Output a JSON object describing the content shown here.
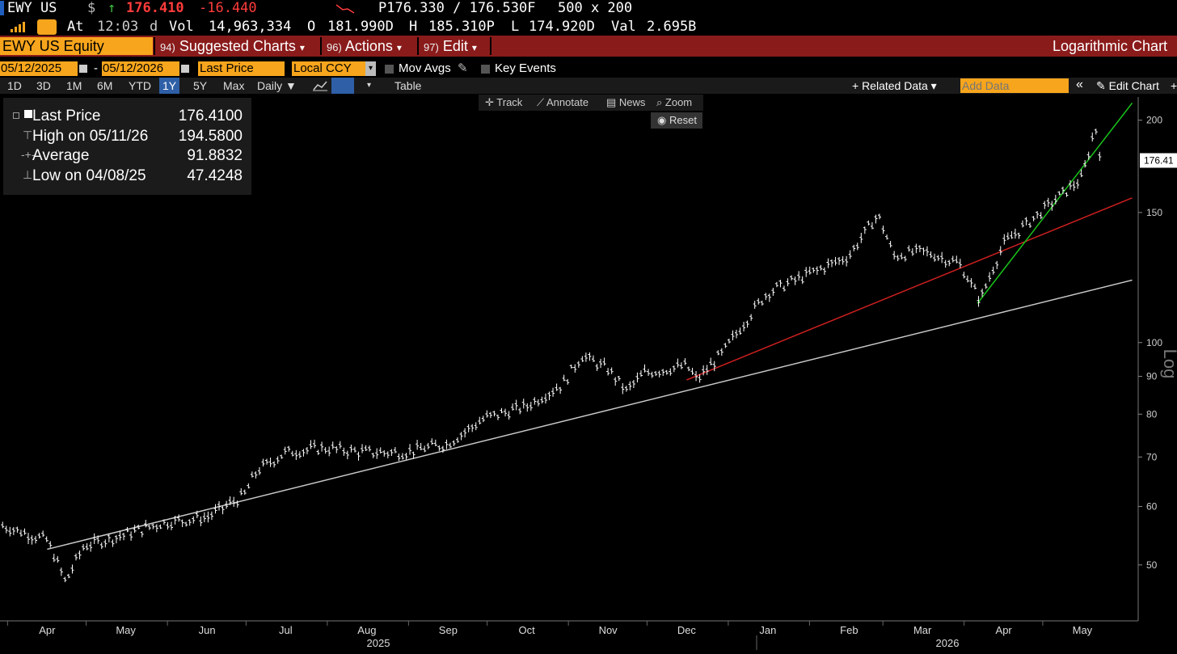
{
  "quote": {
    "ticker": "EWY US",
    "currency_symbol": "$",
    "arrow": "↑",
    "last": "176.410",
    "change": "-16.440",
    "bid_ask": "P176.330 / 176.530F",
    "size": "500 x 200",
    "at_label": "At",
    "time": "12:03",
    "d": "d",
    "vol_label": "Vol",
    "volume": "14,963,334",
    "open_label": "O",
    "open": "181.990D",
    "high_label": "H",
    "high": "185.310P",
    "low_label": "L",
    "low": "174.920D",
    "val_label": "Val",
    "value": "2.695B"
  },
  "menubar": {
    "security": "EWY US Equity",
    "suggested_num": "94)",
    "suggested": "Suggested Charts",
    "actions_num": "96)",
    "actions": "Actions",
    "edit_num": "97)",
    "edit": "Edit",
    "chart_type": "Logarithmic Chart"
  },
  "settings": {
    "start_date": "05/12/2025",
    "dash": "-",
    "end_date": "05/12/2026",
    "field": "Last Price",
    "ccy": "Local CCY",
    "mov_avgs": "Mov Avgs",
    "key_events": "Key Events"
  },
  "periods": [
    "1D",
    "3D",
    "1M",
    "6M",
    "YTD",
    "1Y",
    "5Y",
    "Max"
  ],
  "active_period": "1Y",
  "frequency": "Daily ▼",
  "table_label": "Table",
  "related_data": "+ Related Data ▾",
  "add_data_placeholder": "Add Data",
  "collapse": "«",
  "edit_chart": "Edit Chart",
  "chart_tools": {
    "track": "Track",
    "annotate": "Annotate",
    "news": "News",
    "zoom": "Zoom",
    "reset": "Reset"
  },
  "legend": {
    "last_label": "Last Price",
    "last_value": "176.4100",
    "high_label": "High on 05/11/26",
    "high_value": "194.5800",
    "avg_label": "Average",
    "avg_value": "91.8832",
    "low_label": "Low on 04/08/25",
    "low_value": "47.4248"
  },
  "chart_data": {
    "type": "line",
    "scale": "log",
    "ylim": [
      42,
      215
    ],
    "yticks": [
      50,
      60,
      70,
      80,
      90,
      100,
      150,
      200
    ],
    "last_price_tag": "176.41",
    "y_axis_title": "Log",
    "months": [
      "Apr",
      "May",
      "Jun",
      "Jul",
      "Aug",
      "Sep",
      "Oct",
      "Nov",
      "Dec",
      "Jan",
      "Feb",
      "Mar",
      "Apr",
      "May"
    ],
    "years": [
      "2025",
      "2026"
    ],
    "x_dates": [
      "2025-03-15",
      "2025-04-01",
      "2025-04-08",
      "2025-04-15",
      "2025-05-01",
      "2025-05-15",
      "2025-06-01",
      "2025-06-15",
      "2025-06-20",
      "2025-07-01",
      "2025-07-15",
      "2025-08-01",
      "2025-08-15",
      "2025-09-01",
      "2025-09-15",
      "2025-10-01",
      "2025-10-15",
      "2025-10-22",
      "2025-11-01",
      "2025-11-08",
      "2025-11-15",
      "2025-12-01",
      "2025-12-05",
      "2025-12-15",
      "2026-01-01",
      "2026-01-15",
      "2026-02-01",
      "2026-02-12",
      "2026-02-18",
      "2026-03-01",
      "2026-03-15",
      "2026-03-23",
      "2026-04-01",
      "2026-04-15",
      "2026-05-01",
      "2026-05-06",
      "2026-05-08"
    ],
    "price": [
      56.5,
      54,
      47.4,
      53,
      55,
      57,
      58,
      62,
      67,
      71,
      72,
      71,
      71,
      73,
      79,
      82,
      88,
      96,
      92,
      86,
      91,
      93,
      89,
      97,
      117,
      123,
      131,
      149,
      131,
      133,
      128,
      114,
      136,
      150,
      167,
      196,
      178
    ],
    "trendlines": [
      {
        "color": "#c9c9c9",
        "from": [
          "2025-04-01",
          52.5
        ],
        "to": [
          "2026-05-20",
          121.5
        ]
      },
      {
        "color": "#cc1f1f",
        "from": [
          "2025-12-01",
          89
        ],
        "to": [
          "2026-05-20",
          157
        ]
      },
      {
        "color": "#19c219",
        "from": [
          "2026-03-22",
          113
        ],
        "to": [
          "2026-05-20",
          211
        ]
      }
    ]
  }
}
